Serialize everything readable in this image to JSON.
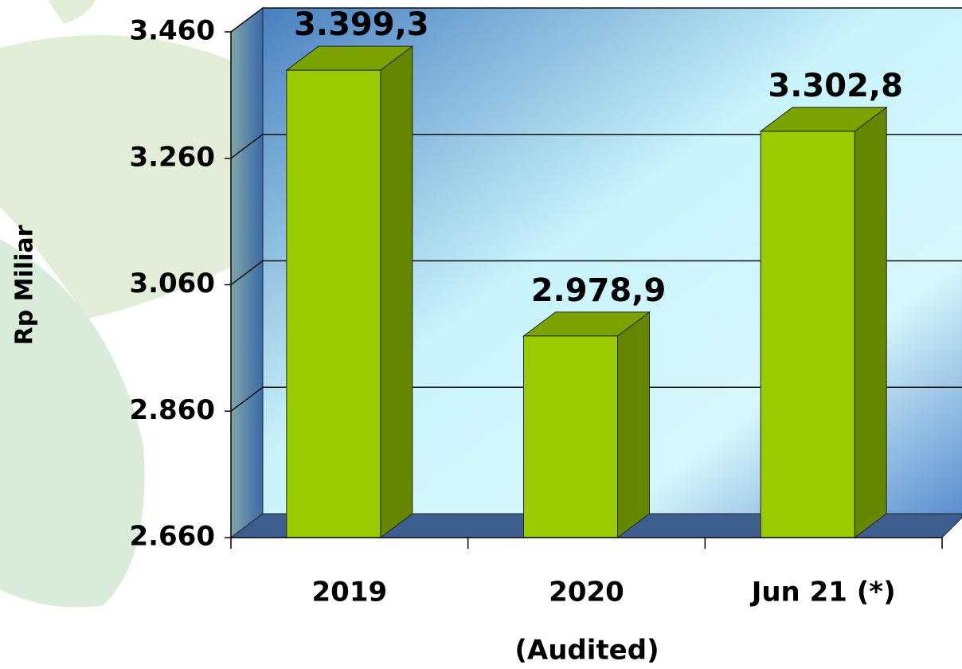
{
  "chart_data": {
    "type": "bar3d",
    "y_axis_label": "Rp Miliar",
    "categories": [
      "2019",
      "2020",
      "Jun 21 (*)"
    ],
    "x_annotation": "(Audited)",
    "values": [
      3399.3,
      2978.9,
      3302.8
    ],
    "value_labels": [
      "3.399,3",
      "2.978,9",
      "3.302,8"
    ],
    "color": "#99cc00",
    "ylim": [
      2660,
      3460
    ],
    "yticks": [
      {
        "value": 2660,
        "label": "2.660"
      },
      {
        "value": 2860,
        "label": "2.860"
      },
      {
        "value": 3060,
        "label": "3.060"
      },
      {
        "value": 3260,
        "label": "3.260"
      },
      {
        "value": 3460,
        "label": "3.460"
      }
    ],
    "grid": true
  }
}
